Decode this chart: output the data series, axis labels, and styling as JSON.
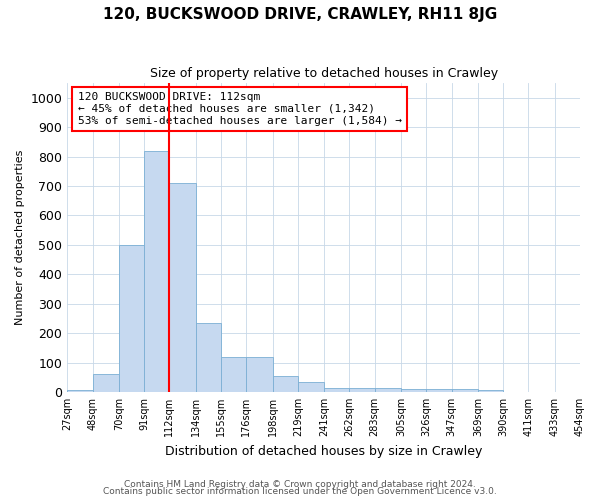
{
  "title": "120, BUCKSWOOD DRIVE, CRAWLEY, RH11 8JG",
  "subtitle": "Size of property relative to detached houses in Crawley",
  "xlabel": "Distribution of detached houses by size in Crawley",
  "ylabel": "Number of detached properties",
  "footer_line1": "Contains HM Land Registry data © Crown copyright and database right 2024.",
  "footer_line2": "Contains public sector information licensed under the Open Government Licence v3.0.",
  "annotation_line1": "120 BUCKSWOOD DRIVE: 112sqm",
  "annotation_line2": "← 45% of detached houses are smaller (1,342)",
  "annotation_line3": "53% of semi-detached houses are larger (1,584) →",
  "bar_color": "#c6d9f0",
  "bar_edge_color": "#7bafd4",
  "red_line_x": 112,
  "categories": [
    "27sqm",
    "48sqm",
    "70sqm",
    "91sqm",
    "112sqm",
    "134sqm",
    "155sqm",
    "176sqm",
    "198sqm",
    "219sqm",
    "241sqm",
    "262sqm",
    "283sqm",
    "305sqm",
    "326sqm",
    "347sqm",
    "369sqm",
    "390sqm",
    "411sqm",
    "433sqm",
    "454sqm"
  ],
  "bin_edges": [
    27,
    48,
    70,
    91,
    112,
    134,
    155,
    176,
    198,
    219,
    241,
    262,
    283,
    305,
    326,
    347,
    369,
    390,
    411,
    433,
    454
  ],
  "values": [
    5,
    60,
    500,
    820,
    710,
    235,
    120,
    120,
    55,
    35,
    15,
    15,
    15,
    10,
    10,
    10,
    8,
    0,
    0,
    0
  ],
  "ylim": [
    0,
    1050
  ],
  "yticks": [
    0,
    100,
    200,
    300,
    400,
    500,
    600,
    700,
    800,
    900,
    1000
  ]
}
